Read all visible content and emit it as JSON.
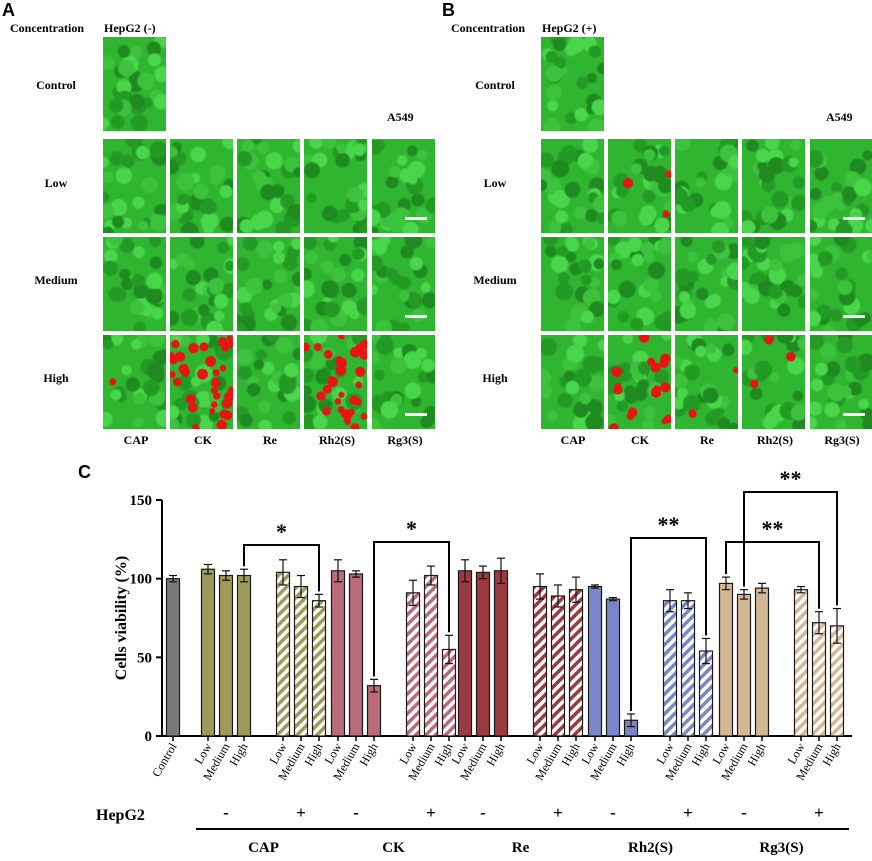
{
  "panels": {
    "A": {
      "letter": "A",
      "header_concentration": "Concentration",
      "header_condition": "HepG2 (-)",
      "cell_line": "A549",
      "rows": [
        "Control",
        "Low",
        "Medium",
        "High"
      ],
      "columns": [
        "CAP",
        "CK",
        "Re",
        "Rh2(S)",
        "Rg3(S)"
      ]
    },
    "B": {
      "letter": "B",
      "header_concentration": "Concentration",
      "header_condition": "HepG2 (+)",
      "cell_line": "A549",
      "rows": [
        "Control",
        "Low",
        "Medium",
        "High"
      ],
      "columns": [
        "CAP",
        "CK",
        "Re",
        "Rh2(S)",
        "Rg3(S)"
      ]
    },
    "C": {
      "letter": "C"
    }
  },
  "colors": {
    "image_green": "#2fb52f",
    "dead_cell_red": "#e81414",
    "control": "#7a7a7a",
    "CAP": "#9e9a5a",
    "CK": "#b86b78",
    "Re": "#9c3a42",
    "Rh2(S)": "#7b86c9",
    "Rg3(S)": "#d2b894"
  },
  "chart_data": {
    "type": "bar",
    "ylabel": "Cells viability (%)",
    "ylim": [
      0,
      150
    ],
    "yticks": [
      "0",
      "50",
      "100",
      "150"
    ],
    "hepg2_label": "HepG2",
    "groups": [
      {
        "name": "Control",
        "bars": [
          {
            "label": "Control",
            "value": 100,
            "err": 2,
            "hatched": false
          }
        ]
      },
      {
        "name": "CAP",
        "minus": "-",
        "plus": "+",
        "bars": [
          {
            "label": "Low",
            "value": 106,
            "err": 3,
            "hatched": false
          },
          {
            "label": "Medium",
            "value": 102,
            "err": 3,
            "hatched": false
          },
          {
            "label": "High",
            "value": 102,
            "err": 4,
            "hatched": false
          },
          {
            "label": "Low",
            "value": 104,
            "err": 8,
            "hatched": true
          },
          {
            "label": "Medium",
            "value": 95,
            "err": 7,
            "hatched": true
          },
          {
            "label": "High",
            "value": 86,
            "err": 4,
            "hatched": true
          }
        ]
      },
      {
        "name": "CK",
        "minus": "-",
        "plus": "+",
        "bars": [
          {
            "label": "Low",
            "value": 105,
            "err": 7,
            "hatched": false
          },
          {
            "label": "Medium",
            "value": 103,
            "err": 2,
            "hatched": false
          },
          {
            "label": "High",
            "value": 32,
            "err": 4,
            "hatched": false
          },
          {
            "label": "Low",
            "value": 91,
            "err": 8,
            "hatched": true
          },
          {
            "label": "Medium",
            "value": 102,
            "err": 6,
            "hatched": true
          },
          {
            "label": "High",
            "value": 55,
            "err": 9,
            "hatched": true
          }
        ]
      },
      {
        "name": "Re",
        "minus": "-",
        "plus": "+",
        "bars": [
          {
            "label": "Low",
            "value": 105,
            "err": 7,
            "hatched": false
          },
          {
            "label": "Medium",
            "value": 104,
            "err": 4,
            "hatched": false
          },
          {
            "label": "High",
            "value": 105,
            "err": 8,
            "hatched": false
          },
          {
            "label": "Low",
            "value": 95,
            "err": 8,
            "hatched": true
          },
          {
            "label": "Medium",
            "value": 89,
            "err": 7,
            "hatched": true
          },
          {
            "label": "High",
            "value": 93,
            "err": 8,
            "hatched": true
          }
        ]
      },
      {
        "name": "Rh2(S)",
        "minus": "-",
        "plus": "+",
        "bars": [
          {
            "label": "Low",
            "value": 95,
            "err": 1,
            "hatched": false
          },
          {
            "label": "Medium",
            "value": 87,
            "err": 1,
            "hatched": false
          },
          {
            "label": "High",
            "value": 10,
            "err": 4,
            "hatched": false
          },
          {
            "label": "Low",
            "value": 86,
            "err": 7,
            "hatched": true
          },
          {
            "label": "Medium",
            "value": 86,
            "err": 5,
            "hatched": true
          },
          {
            "label": "High",
            "value": 54,
            "err": 8,
            "hatched": true
          }
        ]
      },
      {
        "name": "Rg3(S)",
        "minus": "-",
        "plus": "+",
        "bars": [
          {
            "label": "Low",
            "value": 97,
            "err": 4,
            "hatched": false
          },
          {
            "label": "Medium",
            "value": 90,
            "err": 3,
            "hatched": false
          },
          {
            "label": "High",
            "value": 94,
            "err": 3,
            "hatched": false
          },
          {
            "label": "Low",
            "value": 93,
            "err": 2,
            "hatched": true
          },
          {
            "label": "Medium",
            "value": 72,
            "err": 7,
            "hatched": true
          },
          {
            "label": "High",
            "value": 70,
            "err": 11,
            "hatched": true
          }
        ]
      }
    ],
    "significance": [
      {
        "group": "CAP",
        "from_bar": 2,
        "to_bar": 5,
        "stars": "*",
        "level": 0
      },
      {
        "group": "CK",
        "from_bar": 2,
        "to_bar": 5,
        "stars": "*",
        "level": 0
      },
      {
        "group": "Rh2(S)",
        "from_bar": 2,
        "to_bar": 5,
        "stars": "**",
        "level": 0
      },
      {
        "group": "Rg3(S)",
        "from_bar": 0,
        "to_bar": 4,
        "stars": "**",
        "level": 0
      },
      {
        "group": "Rg3(S)",
        "from_bar": 1,
        "to_bar": 5,
        "stars": "**",
        "level": 1
      }
    ]
  }
}
